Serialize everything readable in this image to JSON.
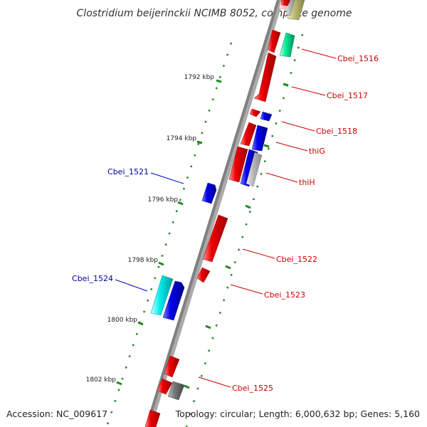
{
  "title": "Clostridium beijerinckii NCIMB 8052, complete genome",
  "footer": {
    "accession": "Accession: NC_009617",
    "summary": "Topology: circular; Length: 6,000,632 bp; Genes: 5,160"
  },
  "ticks": [
    "1792 kbp",
    "1794 kbp",
    "1796 kbp",
    "1798 kbp",
    "1800 kbp",
    "1802 kbp"
  ],
  "gene_labels": {
    "cbei_1516": "Cbei_1516",
    "cbei_1517": "Cbei_1517",
    "cbei_1518": "Cbei_1518",
    "thig": "thiG",
    "thih": "thiH",
    "cbei_1521": "Cbei_1521",
    "cbei_1522": "Cbei_1522",
    "cbei_1523": "Cbei_1523",
    "cbei_1524": "Cbei_1524",
    "cbei_1525": "Cbei_1525"
  },
  "colors": {
    "forward_label": "#cc0000",
    "reverse_label": "#000099",
    "red": "#ee0000",
    "blue": "#0000ee",
    "cyan": "#00eeee",
    "teal": "#00ee99",
    "grey": "#777777",
    "lightgrey": "#bbbbbb",
    "olive": "#bbbb77",
    "tick": "#228822",
    "backbone": "#888888"
  }
}
